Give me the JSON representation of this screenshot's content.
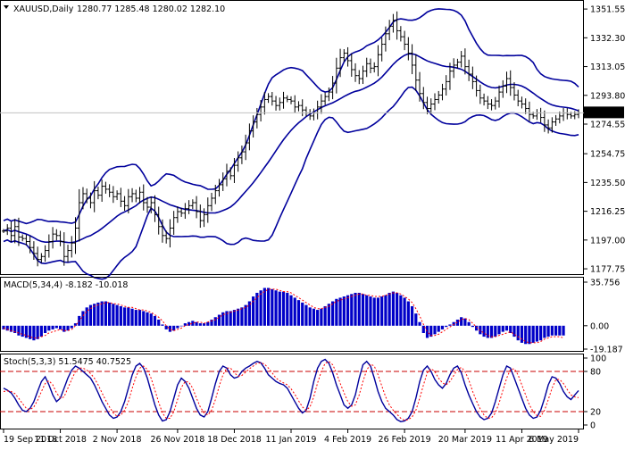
{
  "header": {
    "symbol": "XAUUSD,Daily",
    "ohlc": "1280.77 1285.48 1280.02 1282.10"
  },
  "colors": {
    "price_bars": "#000000",
    "bollinger": "#00009c",
    "macd_hist": "#0000c8",
    "macd_signal": "#ff0000",
    "stoch_main": "#00009c",
    "stoch_signal": "#ff0000",
    "level_lines": "#c80000",
    "grid": "#c0c0c0"
  },
  "chart_data": [
    {
      "type": "candlestick",
      "panel": "price",
      "y_ticks": [
        "1351.55",
        "1332.30",
        "1313.05",
        "1293.80",
        "1274.55",
        "1254.75",
        "1235.50",
        "1216.25",
        "1197.00",
        "1177.75"
      ],
      "ylim": [
        1176,
        1354
      ],
      "current_price": "1282.10",
      "indicators": [
        "Bollinger Bands (upper, middle, lower)"
      ],
      "series": [
        {
          "values": [
            1203,
            1205,
            1200,
            1206,
            1199,
            1198,
            1196,
            1192,
            1188,
            1184,
            1186,
            1190,
            1196,
            1201,
            1200,
            1196,
            1186,
            1190,
            1195,
            1205,
            1222,
            1228,
            1225,
            1222,
            1230,
            1227,
            1233,
            1231,
            1229,
            1226,
            1228,
            1223,
            1220,
            1226,
            1228,
            1225,
            1229,
            1222,
            1219,
            1222,
            1214,
            1206,
            1200,
            1198,
            1205,
            1212,
            1216,
            1215,
            1218,
            1220,
            1222,
            1216,
            1210,
            1214,
            1220,
            1225,
            1230,
            1234,
            1238,
            1243,
            1240,
            1247,
            1252,
            1256,
            1262,
            1270,
            1276,
            1281,
            1286,
            1291,
            1293,
            1290,
            1287,
            1289,
            1292,
            1291,
            1290,
            1286,
            1287,
            1284,
            1282,
            1280,
            1282,
            1286,
            1290,
            1293,
            1296,
            1302,
            1312,
            1319,
            1322,
            1317,
            1311,
            1307,
            1305,
            1310,
            1315,
            1312,
            1313,
            1321,
            1328,
            1335,
            1340,
            1344,
            1337,
            1333,
            1328,
            1322,
            1314,
            1304,
            1295,
            1289,
            1285,
            1288,
            1291,
            1294,
            1298,
            1303,
            1310,
            1314,
            1316,
            1320,
            1313,
            1308,
            1303,
            1297,
            1292,
            1290,
            1288,
            1287,
            1290,
            1296,
            1300,
            1305,
            1299,
            1294,
            1290,
            1288,
            1285,
            1281,
            1280,
            1282,
            1279,
            1274,
            1272,
            1276,
            1278,
            1280,
            1282,
            1281,
            1280,
            1281,
            1282
          ]
        }
      ]
    },
    {
      "type": "bar",
      "panel": "MACD",
      "label": "MACD(5,34,4) -8.182 -10.018",
      "y_ticks": [
        "35.756",
        "0.00",
        "-19.187"
      ],
      "ylim": [
        -19.187,
        35.756
      ],
      "series": [
        {
          "name": "histogram",
          "values": [
            -3,
            -4,
            -5,
            -6,
            -8,
            -9,
            -10,
            -11,
            -12,
            -11,
            -9,
            -6,
            -4,
            -3,
            -2,
            -3,
            -5,
            -4,
            -2,
            2,
            8,
            12,
            15,
            17,
            18,
            19,
            20,
            20,
            19,
            18,
            17,
            16,
            15,
            15,
            14,
            13,
            13,
            12,
            11,
            10,
            8,
            5,
            1,
            -3,
            -5,
            -4,
            -2,
            0,
            2,
            3,
            4,
            3,
            2,
            2,
            3,
            5,
            7,
            9,
            11,
            12,
            12,
            13,
            14,
            15,
            17,
            20,
            24,
            27,
            29,
            31,
            31,
            30,
            29,
            28,
            28,
            27,
            25,
            23,
            21,
            19,
            17,
            15,
            14,
            13,
            14,
            16,
            18,
            20,
            22,
            23,
            24,
            25,
            26,
            27,
            27,
            26,
            25,
            24,
            23,
            23,
            24,
            25,
            27,
            28,
            27,
            25,
            23,
            20,
            16,
            10,
            3,
            -6,
            -10,
            -9,
            -7,
            -5,
            -3,
            -1,
            1,
            3,
            5,
            7,
            6,
            3,
            -1,
            -4,
            -7,
            -9,
            -10,
            -10,
            -9,
            -7,
            -5,
            -4,
            -6,
            -9,
            -12,
            -14,
            -15,
            -15,
            -14,
            -13,
            -12,
            -10,
            -9,
            -8,
            -8,
            -8,
            -8
          ]
        },
        {
          "name": "signal",
          "values": [
            -2,
            -3,
            -4,
            -5,
            -6,
            -7,
            -8,
            -9,
            -10,
            -10,
            -9,
            -8,
            -6,
            -5,
            -4,
            -3,
            -4,
            -4,
            -3,
            0,
            4,
            8,
            12,
            14,
            16,
            17,
            18,
            19,
            19,
            18,
            18,
            17,
            16,
            15,
            15,
            14,
            13,
            13,
            12,
            11,
            9,
            7,
            4,
            0,
            -3,
            -4,
            -3,
            -2,
            0,
            1,
            2,
            3,
            3,
            2,
            3,
            4,
            5,
            7,
            9,
            10,
            11,
            12,
            13,
            14,
            15,
            17,
            20,
            23,
            26,
            28,
            30,
            30,
            30,
            29,
            28,
            28,
            27,
            25,
            23,
            21,
            19,
            17,
            15,
            14,
            14,
            15,
            16,
            18,
            20,
            21,
            22,
            23,
            24,
            25,
            26,
            26,
            25,
            25,
            24,
            24,
            24,
            25,
            26,
            27,
            27,
            26,
            24,
            22,
            19,
            14,
            8,
            1,
            -5,
            -8,
            -8,
            -7,
            -5,
            -3,
            -1,
            1,
            3,
            5,
            6,
            5,
            2,
            -1,
            -4,
            -6,
            -8,
            -9,
            -9,
            -8,
            -7,
            -6,
            -5,
            -7,
            -9,
            -11,
            -13,
            -14,
            -14,
            -14,
            -13,
            -11,
            -10,
            -9,
            -9,
            -9,
            -10
          ]
        }
      ]
    },
    {
      "type": "line",
      "panel": "Stochastic",
      "label": "Stoch(5,3,3) 51.5475 40.7525",
      "y_ticks": [
        "100",
        "80",
        "20",
        "0"
      ],
      "ylim": [
        0,
        100
      ],
      "levels": [
        80,
        20
      ],
      "series": [
        {
          "name": "main",
          "values": [
            55,
            52,
            48,
            40,
            30,
            22,
            20,
            25,
            35,
            50,
            65,
            72,
            60,
            45,
            35,
            40,
            55,
            70,
            82,
            88,
            85,
            80,
            75,
            70,
            60,
            48,
            35,
            25,
            15,
            10,
            12,
            20,
            35,
            55,
            75,
            88,
            92,
            85,
            70,
            50,
            30,
            15,
            6,
            8,
            20,
            40,
            60,
            70,
            65,
            55,
            40,
            25,
            15,
            12,
            20,
            40,
            62,
            80,
            88,
            85,
            75,
            70,
            72,
            80,
            85,
            88,
            92,
            95,
            93,
            85,
            75,
            70,
            65,
            62,
            60,
            55,
            45,
            35,
            25,
            18,
            22,
            40,
            65,
            85,
            95,
            98,
            92,
            78,
            60,
            45,
            30,
            25,
            30,
            45,
            70,
            90,
            95,
            88,
            70,
            50,
            35,
            25,
            20,
            15,
            8,
            5,
            6,
            10,
            20,
            40,
            65,
            82,
            88,
            80,
            68,
            60,
            55,
            62,
            75,
            85,
            88,
            78,
            60,
            45,
            32,
            20,
            12,
            8,
            10,
            18,
            35,
            55,
            75,
            88,
            85,
            70,
            55,
            40,
            25,
            15,
            10,
            12,
            22,
            40,
            60,
            72,
            70,
            62,
            50,
            42,
            38,
            45,
            51.5
          ]
        },
        {
          "name": "signal",
          "values": [
            50,
            51,
            50,
            47,
            40,
            32,
            25,
            23,
            27,
            37,
            50,
            62,
            66,
            60,
            48,
            40,
            42,
            55,
            68,
            80,
            85,
            85,
            82,
            77,
            70,
            60,
            48,
            37,
            27,
            18,
            13,
            15,
            22,
            35,
            55,
            72,
            85,
            88,
            83,
            70,
            52,
            34,
            18,
            10,
            10,
            20,
            38,
            56,
            65,
            64,
            55,
            40,
            27,
            18,
            15,
            22,
            38,
            58,
            75,
            85,
            85,
            78,
            73,
            74,
            79,
            84,
            88,
            92,
            93,
            91,
            85,
            78,
            70,
            66,
            63,
            60,
            54,
            46,
            36,
            27,
            22,
            27,
            42,
            63,
            80,
            92,
            95,
            90,
            78,
            62,
            48,
            35,
            28,
            30,
            45,
            65,
            82,
            91,
            88,
            75,
            58,
            42,
            30,
            22,
            16,
            10,
            7,
            8,
            12,
            22,
            40,
            60,
            78,
            84,
            80,
            70,
            63,
            60,
            65,
            74,
            83,
            86,
            80,
            67,
            50,
            36,
            24,
            15,
            10,
            11,
            18,
            33,
            52,
            70,
            83,
            84,
            75,
            60,
            45,
            30,
            20,
            14,
            13,
            22,
            38,
            55,
            68,
            68,
            62,
            53,
            45,
            42,
            40.8
          ]
        }
      ]
    }
  ],
  "x_axis": {
    "labels": [
      "19 Sep 2018",
      "11 Oct 2018",
      "2 Nov 2018",
      "26 Nov 2018",
      "18 Dec 2018",
      "11 Jan 2019",
      "4 Feb 2019",
      "26 Feb 2019",
      "20 Mar 2019",
      "11 Apr 2019",
      "6 May 2019"
    ]
  }
}
